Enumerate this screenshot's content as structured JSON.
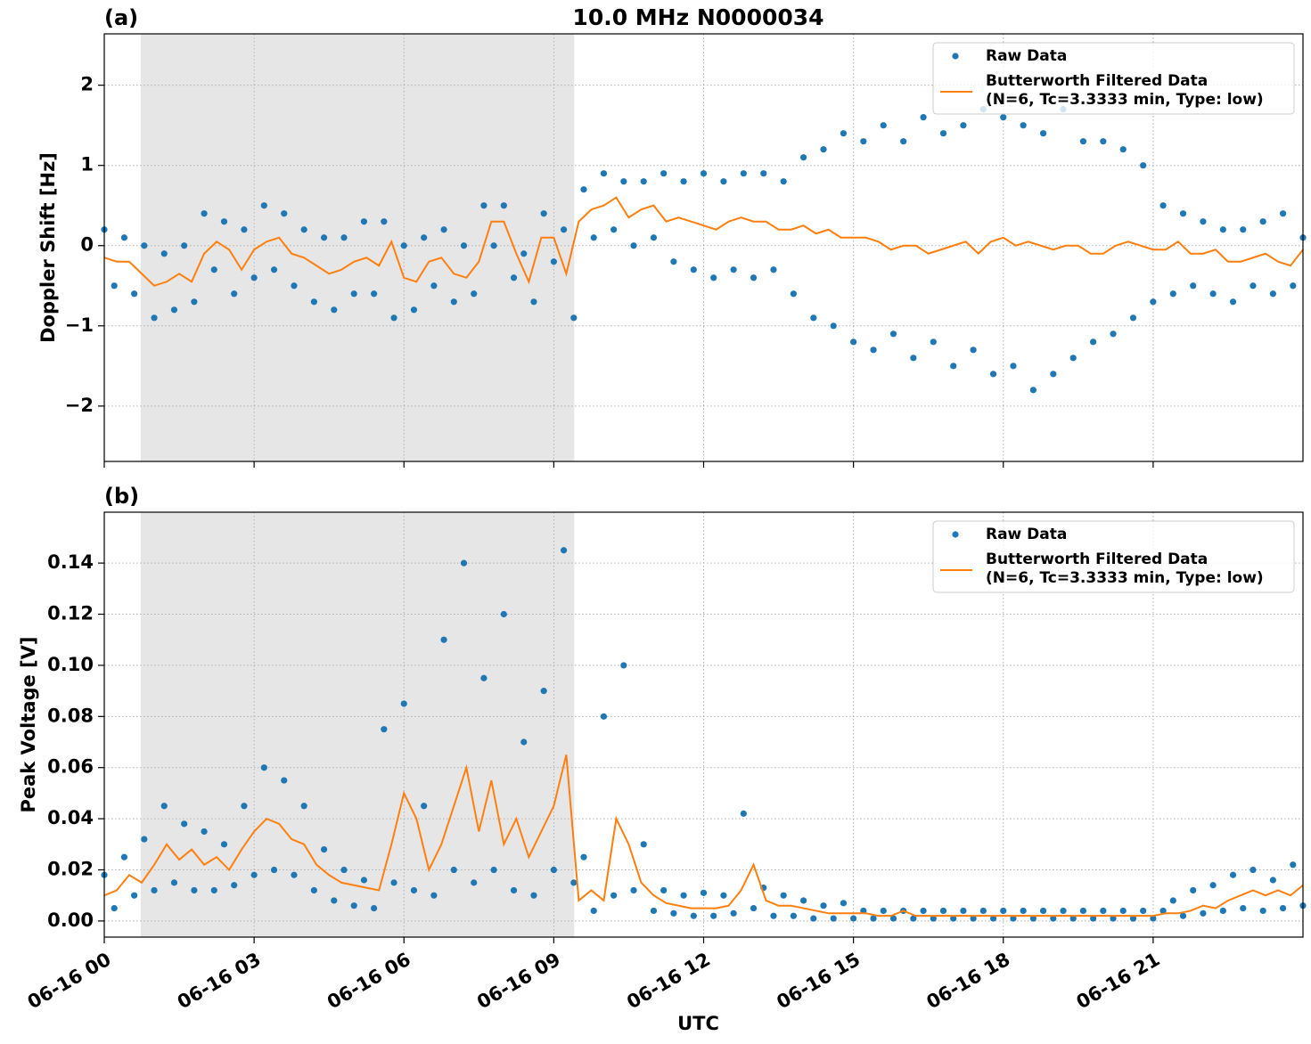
{
  "chart_data": [
    {
      "type": "scatter",
      "title": "10.0 MHz N0000034",
      "panel_label": "(a)",
      "ylabel": "Doppler Shift [Hz]",
      "xlim": [
        0,
        24
      ],
      "xticks": [
        0,
        3,
        6,
        9,
        12,
        15,
        18,
        21
      ],
      "xticklabels": false,
      "ylim": [
        -2.69,
        2.64
      ],
      "yticks": [
        -2,
        -1,
        0,
        1,
        2
      ],
      "grid": true,
      "legend": "upper right",
      "shaded_span": [
        0.73,
        9.41
      ],
      "shade_color": "#e6e6e6",
      "x": [
        0,
        0.25,
        0.5,
        0.75,
        1,
        1.25,
        1.5,
        1.75,
        2,
        2.25,
        2.5,
        2.75,
        3,
        3.25,
        3.5,
        3.75,
        4,
        4.25,
        4.5,
        4.75,
        5,
        5.25,
        5.5,
        5.75,
        6,
        6.25,
        6.5,
        6.75,
        7,
        7.25,
        7.5,
        7.75,
        8,
        8.25,
        8.5,
        8.75,
        9,
        9.25,
        9.5,
        9.75,
        10,
        10.25,
        10.5,
        10.75,
        11,
        11.25,
        11.5,
        11.75,
        12,
        12.25,
        12.5,
        12.75,
        13,
        13.25,
        13.5,
        13.75,
        14,
        14.25,
        14.5,
        14.75,
        15,
        15.25,
        15.5,
        15.75,
        16,
        16.25,
        16.5,
        16.75,
        17,
        17.25,
        17.5,
        17.75,
        18,
        18.25,
        18.5,
        18.75,
        19,
        19.25,
        19.5,
        19.75,
        20,
        20.25,
        20.5,
        20.75,
        21,
        21.25,
        21.5,
        21.75,
        22,
        22.25,
        22.5,
        22.75,
        23,
        23.25,
        23.5,
        23.75,
        24
      ],
      "series": [
        {
          "name": "Raw Data",
          "style": "markers",
          "color": "#1f77b4",
          "x": [
            0,
            0.2,
            0.4,
            0.6,
            0.8,
            1,
            1.2,
            1.4,
            1.6,
            1.8,
            2,
            2.2,
            2.4,
            2.6,
            2.8,
            3,
            3.2,
            3.4,
            3.6,
            3.8,
            4,
            4.2,
            4.4,
            4.6,
            4.8,
            5,
            5.2,
            5.4,
            5.6,
            5.8,
            6,
            6.2,
            6.4,
            6.6,
            6.8,
            7,
            7.2,
            7.4,
            7.6,
            7.8,
            8,
            8.2,
            8.4,
            8.6,
            8.8,
            9,
            9.2,
            9.4,
            9.6,
            9.8,
            10,
            10.2,
            10.4,
            10.6,
            10.8,
            11,
            11.2,
            11.4,
            11.6,
            11.8,
            12,
            12.2,
            12.4,
            12.6,
            12.8,
            13,
            13.2,
            13.4,
            13.6,
            13.8,
            14,
            14.2,
            14.4,
            14.6,
            14.8,
            15,
            15.2,
            15.4,
            15.6,
            15.8,
            16,
            16.2,
            16.4,
            16.6,
            16.8,
            17,
            17.2,
            17.4,
            17.6,
            17.8,
            18,
            18.2,
            18.4,
            18.6,
            18.8,
            19,
            19.2,
            19.4,
            19.6,
            19.8,
            20,
            20.2,
            20.4,
            20.6,
            20.8,
            21,
            21.2,
            21.4,
            21.6,
            21.8,
            22,
            22.2,
            22.4,
            22.6,
            22.8,
            23,
            23.2,
            23.4,
            23.6,
            23.8,
            24
          ],
          "values": [
            0.2,
            -0.5,
            0.1,
            -0.6,
            0.0,
            -0.9,
            -0.1,
            -0.8,
            0.0,
            -0.7,
            0.4,
            -0.3,
            0.3,
            -0.6,
            0.2,
            -0.4,
            0.5,
            -0.3,
            0.4,
            -0.5,
            0.2,
            -0.7,
            0.1,
            -0.8,
            0.1,
            -0.6,
            0.3,
            -0.6,
            0.3,
            -0.9,
            0.0,
            -0.8,
            0.1,
            -0.5,
            0.2,
            -0.7,
            0.0,
            -0.6,
            0.5,
            0.0,
            0.5,
            -0.4,
            -0.1,
            -0.7,
            0.4,
            -0.2,
            0.2,
            -0.9,
            0.7,
            0.1,
            0.9,
            0.2,
            0.8,
            0.0,
            0.8,
            0.1,
            0.9,
            -0.2,
            0.8,
            -0.3,
            0.9,
            -0.4,
            0.8,
            -0.3,
            0.9,
            -0.4,
            0.9,
            -0.3,
            0.8,
            -0.6,
            1.1,
            -0.9,
            1.2,
            -1.0,
            1.4,
            -1.2,
            1.3,
            -1.3,
            1.5,
            -1.1,
            1.3,
            -1.4,
            1.6,
            -1.2,
            1.4,
            -1.5,
            1.5,
            -1.3,
            1.7,
            -1.6,
            1.6,
            -1.5,
            1.5,
            -1.8,
            1.4,
            -1.6,
            1.7,
            -1.4,
            1.3,
            -1.2,
            1.3,
            -1.1,
            1.2,
            -0.9,
            1.0,
            -0.7,
            0.5,
            -0.6,
            0.4,
            -0.5,
            0.3,
            -0.6,
            0.2,
            -0.7,
            0.2,
            -0.5,
            0.3,
            -0.6,
            0.4,
            -0.5,
            0.1
          ]
        },
        {
          "name": "Butterworth Filtered Data",
          "name_detail": "(N=6, Tc=3.3333 min, Type: low)",
          "style": "line",
          "color": "#ff7f0e",
          "values": [
            -0.15,
            -0.2,
            -0.2,
            -0.35,
            -0.5,
            -0.45,
            -0.35,
            -0.45,
            -0.1,
            0.05,
            -0.05,
            -0.3,
            -0.05,
            0.05,
            0.1,
            -0.1,
            -0.15,
            -0.25,
            -0.35,
            -0.3,
            -0.2,
            -0.15,
            -0.25,
            0.05,
            -0.4,
            -0.45,
            -0.2,
            -0.15,
            -0.35,
            -0.4,
            -0.2,
            0.3,
            0.3,
            -0.1,
            -0.45,
            0.1,
            0.1,
            -0.35,
            0.3,
            0.45,
            0.5,
            0.6,
            0.35,
            0.45,
            0.5,
            0.3,
            0.35,
            0.3,
            0.25,
            0.2,
            0.3,
            0.35,
            0.3,
            0.3,
            0.2,
            0.2,
            0.25,
            0.15,
            0.2,
            0.1,
            0.1,
            0.1,
            0.05,
            -0.05,
            0.0,
            0.0,
            -0.1,
            -0.05,
            0.0,
            0.05,
            -0.1,
            0.05,
            0.1,
            0.0,
            0.05,
            0.0,
            -0.05,
            0.0,
            0.0,
            -0.1,
            -0.1,
            0.0,
            0.05,
            0.0,
            -0.05,
            -0.05,
            0.05,
            -0.1,
            -0.1,
            -0.05,
            -0.2,
            -0.2,
            -0.15,
            -0.1,
            -0.2,
            -0.25,
            -0.05
          ]
        }
      ]
    },
    {
      "type": "scatter",
      "panel_label": "(b)",
      "ylabel": "Peak Voltage [V]",
      "xlabel": "UTC",
      "xlim": [
        0,
        24
      ],
      "xticks": [
        {
          "value": 0,
          "label": "06-16 00"
        },
        {
          "value": 3,
          "label": "06-16 03"
        },
        {
          "value": 6,
          "label": "06-16 06"
        },
        {
          "value": 9,
          "label": "06-16 09"
        },
        {
          "value": 12,
          "label": "06-16 12"
        },
        {
          "value": 15,
          "label": "06-16 15"
        },
        {
          "value": 18,
          "label": "06-16 18"
        },
        {
          "value": 21,
          "label": "06-16 21"
        }
      ],
      "xticklabels": true,
      "ylim": [
        -0.0063,
        0.1599
      ],
      "yticks": [
        {
          "value": 0,
          "label": "0.00"
        },
        {
          "value": 0.02,
          "label": "0.02"
        },
        {
          "value": 0.04,
          "label": "0.04"
        },
        {
          "value": 0.06,
          "label": "0.06"
        },
        {
          "value": 0.08,
          "label": "0.08"
        },
        {
          "value": 0.1,
          "label": "0.10"
        },
        {
          "value": 0.12,
          "label": "0.12"
        },
        {
          "value": 0.14,
          "label": "0.14"
        }
      ],
      "grid": true,
      "legend": "upper right",
      "shaded_span": [
        0.73,
        9.41
      ],
      "shade_color": "#e6e6e6",
      "x": [
        0,
        0.25,
        0.5,
        0.75,
        1,
        1.25,
        1.5,
        1.75,
        2,
        2.25,
        2.5,
        2.75,
        3,
        3.25,
        3.5,
        3.75,
        4,
        4.25,
        4.5,
        4.75,
        5,
        5.25,
        5.5,
        5.75,
        6,
        6.25,
        6.5,
        6.75,
        7,
        7.25,
        7.5,
        7.75,
        8,
        8.25,
        8.5,
        8.75,
        9,
        9.25,
        9.5,
        9.75,
        10,
        10.25,
        10.5,
        10.75,
        11,
        11.25,
        11.5,
        11.75,
        12,
        12.25,
        12.5,
        12.75,
        13,
        13.25,
        13.5,
        13.75,
        14,
        14.25,
        14.5,
        14.75,
        15,
        15.25,
        15.5,
        15.75,
        16,
        16.25,
        16.5,
        16.75,
        17,
        17.25,
        17.5,
        17.75,
        18,
        18.25,
        18.5,
        18.75,
        19,
        19.25,
        19.5,
        19.75,
        20,
        20.25,
        20.5,
        20.75,
        21,
        21.25,
        21.5,
        21.75,
        22,
        22.25,
        22.5,
        22.75,
        23,
        23.25,
        23.5,
        23.75,
        24
      ],
      "series": [
        {
          "name": "Raw Data",
          "style": "markers",
          "color": "#1f77b4",
          "x": [
            0,
            0.2,
            0.4,
            0.6,
            0.8,
            1,
            1.2,
            1.4,
            1.6,
            1.8,
            2,
            2.2,
            2.4,
            2.6,
            2.8,
            3,
            3.2,
            3.4,
            3.6,
            3.8,
            4,
            4.2,
            4.4,
            4.6,
            4.8,
            5,
            5.2,
            5.4,
            5.6,
            5.8,
            6,
            6.2,
            6.4,
            6.6,
            6.8,
            7,
            7.2,
            7.4,
            7.6,
            7.8,
            8,
            8.2,
            8.4,
            8.6,
            8.8,
            9,
            9.2,
            9.4,
            9.6,
            9.8,
            10,
            10.2,
            10.4,
            10.6,
            10.8,
            11,
            11.2,
            11.4,
            11.6,
            11.8,
            12,
            12.2,
            12.4,
            12.6,
            12.8,
            13,
            13.2,
            13.4,
            13.6,
            13.8,
            14,
            14.2,
            14.4,
            14.6,
            14.8,
            15,
            15.2,
            15.4,
            15.6,
            15.8,
            16,
            16.2,
            16.4,
            16.6,
            16.8,
            17,
            17.2,
            17.4,
            17.6,
            17.8,
            18,
            18.2,
            18.4,
            18.6,
            18.8,
            19,
            19.2,
            19.4,
            19.6,
            19.8,
            20,
            20.2,
            20.4,
            20.6,
            20.8,
            21,
            21.2,
            21.4,
            21.6,
            21.8,
            22,
            22.2,
            22.4,
            22.6,
            22.8,
            23,
            23.2,
            23.4,
            23.6,
            23.8,
            24
          ],
          "values": [
            0.018,
            0.005,
            0.025,
            0.01,
            0.032,
            0.012,
            0.045,
            0.015,
            0.038,
            0.012,
            0.035,
            0.012,
            0.03,
            0.014,
            0.045,
            0.018,
            0.06,
            0.02,
            0.055,
            0.018,
            0.045,
            0.012,
            0.028,
            0.008,
            0.02,
            0.006,
            0.016,
            0.005,
            0.075,
            0.015,
            0.085,
            0.012,
            0.045,
            0.01,
            0.11,
            0.02,
            0.14,
            0.015,
            0.095,
            0.02,
            0.12,
            0.012,
            0.07,
            0.01,
            0.09,
            0.02,
            0.145,
            0.015,
            0.025,
            0.004,
            0.08,
            0.01,
            0.1,
            0.012,
            0.03,
            0.004,
            0.012,
            0.003,
            0.01,
            0.002,
            0.011,
            0.002,
            0.01,
            0.003,
            0.042,
            0.005,
            0.013,
            0.002,
            0.01,
            0.002,
            0.008,
            0.001,
            0.006,
            0.001,
            0.007,
            0.001,
            0.004,
            0.001,
            0.004,
            0.001,
            0.004,
            0.001,
            0.004,
            0.001,
            0.004,
            0.001,
            0.004,
            0.001,
            0.004,
            0.001,
            0.004,
            0.001,
            0.004,
            0.001,
            0.004,
            0.001,
            0.004,
            0.001,
            0.004,
            0.001,
            0.004,
            0.001,
            0.004,
            0.001,
            0.004,
            0.001,
            0.004,
            0.008,
            0.002,
            0.012,
            0.003,
            0.014,
            0.004,
            0.018,
            0.005,
            0.02,
            0.004,
            0.016,
            0.005,
            0.022,
            0.006
          ]
        },
        {
          "name": "Butterworth Filtered Data",
          "name_detail": "(N=6, Tc=3.3333 min, Type: low)",
          "style": "line",
          "color": "#ff7f0e",
          "values": [
            0.01,
            0.012,
            0.018,
            0.015,
            0.022,
            0.03,
            0.024,
            0.028,
            0.022,
            0.025,
            0.02,
            0.028,
            0.035,
            0.04,
            0.038,
            0.032,
            0.03,
            0.022,
            0.018,
            0.015,
            0.014,
            0.013,
            0.012,
            0.03,
            0.05,
            0.04,
            0.02,
            0.03,
            0.045,
            0.06,
            0.035,
            0.055,
            0.03,
            0.04,
            0.025,
            0.035,
            0.045,
            0.065,
            0.008,
            0.012,
            0.008,
            0.04,
            0.03,
            0.015,
            0.01,
            0.007,
            0.006,
            0.005,
            0.005,
            0.005,
            0.006,
            0.012,
            0.022,
            0.008,
            0.006,
            0.006,
            0.005,
            0.004,
            0.003,
            0.003,
            0.003,
            0.003,
            0.002,
            0.002,
            0.004,
            0.002,
            0.002,
            0.002,
            0.002,
            0.002,
            0.002,
            0.002,
            0.002,
            0.002,
            0.002,
            0.002,
            0.002,
            0.002,
            0.002,
            0.002,
            0.002,
            0.002,
            0.002,
            0.002,
            0.002,
            0.003,
            0.003,
            0.004,
            0.006,
            0.005,
            0.008,
            0.01,
            0.012,
            0.01,
            0.012,
            0.01,
            0.014
          ]
        }
      ]
    }
  ]
}
